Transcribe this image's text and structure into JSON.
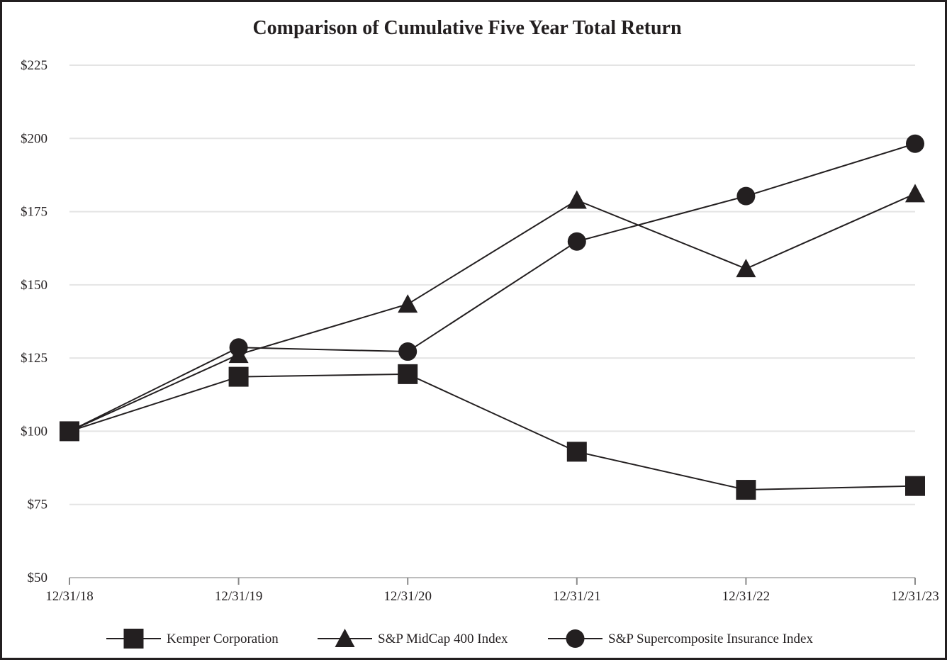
{
  "chart_data": {
    "type": "line",
    "title": "Comparison of Cumulative Five Year Total Return",
    "xlabel": "",
    "ylabel": "",
    "categories": [
      "12/31/18",
      "12/31/19",
      "12/31/20",
      "12/31/21",
      "12/31/22",
      "12/31/23"
    ],
    "y_ticks": [
      "$50",
      "$75",
      "$100",
      "$125",
      "$150",
      "$175",
      "$200",
      "$225"
    ],
    "ylim": [
      50,
      225
    ],
    "grid": true,
    "legend_position": "bottom",
    "series": [
      {
        "name": "Kemper Corporation",
        "marker": "square",
        "values": [
          100,
          118.6,
          119.5,
          93.0,
          80.0,
          81.3
        ]
      },
      {
        "name": "S&P MidCap 400 Index",
        "marker": "triangle",
        "values": [
          100,
          126.2,
          143.4,
          178.9,
          155.5,
          181.1
        ]
      },
      {
        "name": "S&P Supercomposite Insurance Index",
        "marker": "circle",
        "values": [
          100,
          128.6,
          127.2,
          164.8,
          180.3,
          198.2
        ]
      }
    ],
    "colors": {
      "line": "#231f20",
      "grid": "#e4e4e4",
      "frame": "#231f20"
    }
  }
}
